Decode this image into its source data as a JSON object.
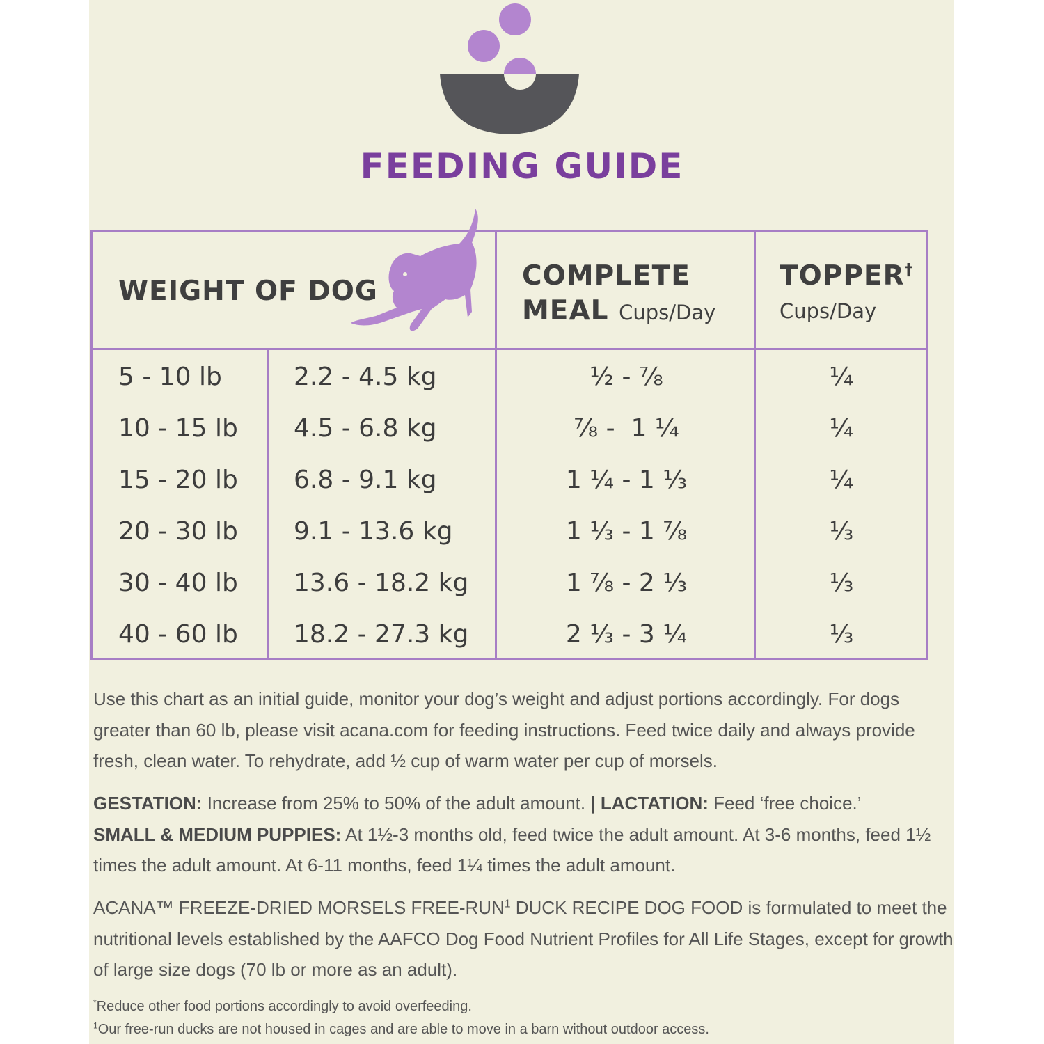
{
  "title": "FEEDING GUIDE",
  "colors": {
    "accent": "#7a3f9d",
    "border": "#a77ec5",
    "morsel": "#b385cf",
    "bowl": "#555559",
    "background": "#f1f0df"
  },
  "icons": {
    "top": "bowl-with-morsels-icon",
    "table": "playing-dog-icon"
  },
  "table": {
    "headers": {
      "weight": "WEIGHT OF DOG",
      "complete_line1": "COMPLETE",
      "complete_line2": "MEAL",
      "complete_unit": "Cups/Day",
      "topper": "TOPPER",
      "topper_mark": "†",
      "topper_unit": "Cups/Day"
    },
    "rows": [
      {
        "lb": "5 - 10 lb",
        "kg": "2.2 - 4.5 kg",
        "complete": "½ - ⅞",
        "topper": "¼"
      },
      {
        "lb": "10 - 15 lb",
        "kg": "4.5 - 6.8 kg",
        "complete": "⅞ -  1 ¼",
        "topper": "¼"
      },
      {
        "lb": "15 - 20 lb",
        "kg": "6.8 - 9.1 kg",
        "complete": "1 ¼ - 1 ⅓",
        "topper": "¼"
      },
      {
        "lb": "20 - 30 lb",
        "kg": "9.1 - 13.6 kg",
        "complete": "1 ⅓ - 1 ⅞",
        "topper": "⅓"
      },
      {
        "lb": "30 - 40 lb",
        "kg": "13.6 - 18.2 kg",
        "complete": "1 ⅞ - 2 ⅓",
        "topper": "⅓"
      },
      {
        "lb": "40 - 60 lb",
        "kg": "18.2 - 27.3 kg",
        "complete": "2 ⅓ - 3 ¼",
        "topper": "⅓"
      }
    ]
  },
  "instructions": "Use this chart as an initial guide, monitor your dog’s weight and adjust portions accordingly. For dogs greater than 60 lb, please visit acana.com for feeding instructions. Feed twice daily and always provide fresh, clean water. To rehydrate, add ½ cup of warm water per cup of morsels.",
  "gestation": {
    "label": "GESTATION:",
    "text": " Increase from 25% to 50% of the adult amount. ",
    "sep": "|"
  },
  "lactation": {
    "label": "LACTATION:",
    "text": " Feed ‘free choice.’"
  },
  "puppies": {
    "label": "SMALL & MEDIUM PUPPIES:",
    "text": " At 1½-3 months old, feed twice the adult amount. At 3-6 months, feed 1½ times the adult amount. At 6-11 months, feed 1¼ times the adult amount."
  },
  "aafco": {
    "part1": "ACANA™ FREEZE-DRIED MORSELS FREE-RUN",
    "mark": "1",
    "part2": " DUCK RECIPE DOG FOOD is formulated to meet the nutritional levels established by the AAFCO Dog Food Nutrient Profiles for All Life Stages, except for growth of large size dogs (70 lb or more as an adult)."
  },
  "footnotes": [
    {
      "mark": "*",
      "text": "Reduce other food portions accordingly to avoid overfeeding."
    },
    {
      "mark": "1",
      "text": "Our free-run ducks are not housed in cages and are able to move in a barn without outdoor access."
    }
  ]
}
